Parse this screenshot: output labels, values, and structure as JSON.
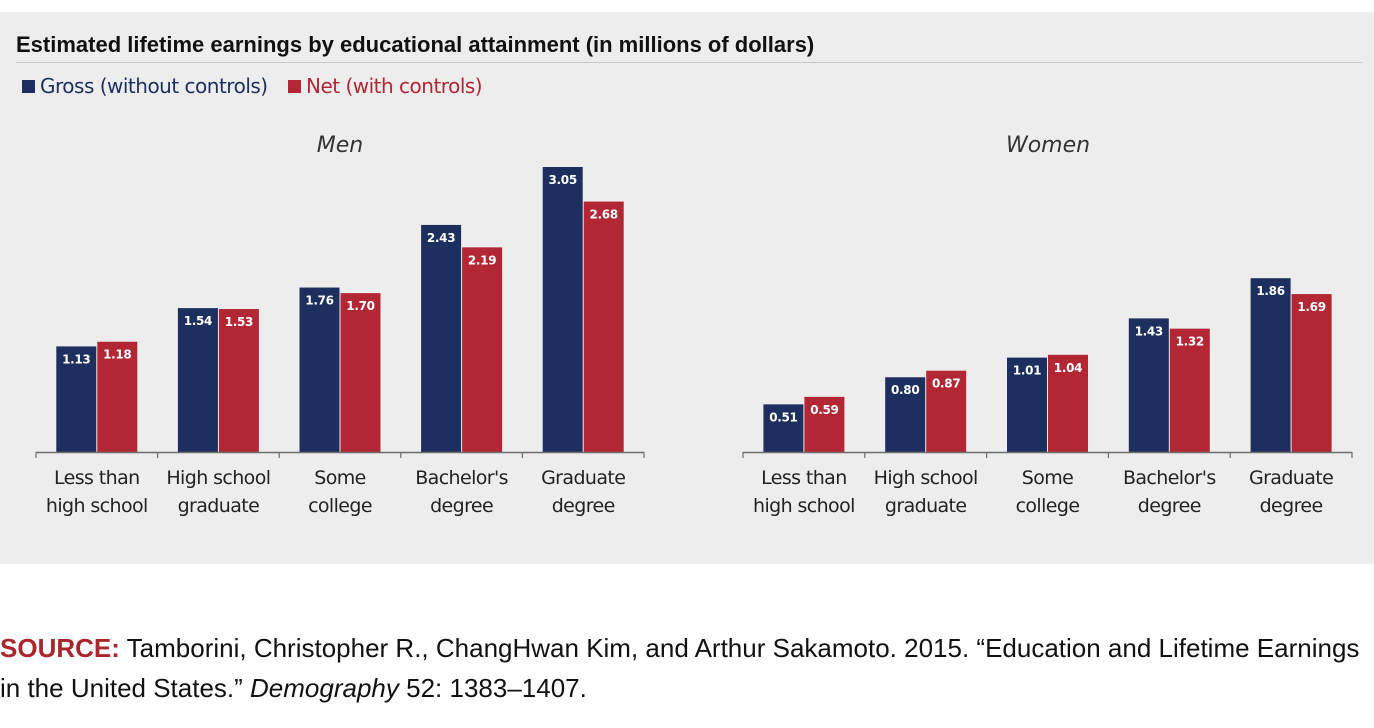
{
  "title": "Estimated lifetime earnings by educational attainment (in millions of dollars)",
  "legend": [
    {
      "label": "Gross (without controls)",
      "color": "#1c2f5e"
    },
    {
      "label": "Net (with controls)",
      "color": "#b32634"
    }
  ],
  "chart_data": [
    {
      "type": "bar",
      "title": "Men",
      "categories": [
        [
          "Less than",
          "high school"
        ],
        [
          "High school",
          "graduate"
        ],
        [
          "Some",
          "college"
        ],
        [
          "Bachelor's",
          "degree"
        ],
        [
          "Graduate",
          "degree"
        ]
      ],
      "series": [
        {
          "name": "Gross (without controls)",
          "color": "#1c2f5e",
          "values": [
            1.13,
            1.54,
            1.76,
            2.43,
            3.05
          ],
          "labels": [
            "1.13",
            "1.54",
            "1.76",
            "2.43",
            "3.05"
          ]
        },
        {
          "name": "Net (with controls)",
          "color": "#b32634",
          "values": [
            1.18,
            1.53,
            1.7,
            2.19,
            2.68
          ],
          "labels": [
            "1.18",
            "1.53",
            "1.70",
            "2.19",
            "2.68"
          ]
        }
      ],
      "ylim": [
        0,
        3.05
      ],
      "grid": false
    },
    {
      "type": "bar",
      "title": "Women",
      "categories": [
        [
          "Less than",
          "high school"
        ],
        [
          "High school",
          "graduate"
        ],
        [
          "Some",
          "college"
        ],
        [
          "Bachelor's",
          "degree"
        ],
        [
          "Graduate",
          "degree"
        ]
      ],
      "series": [
        {
          "name": "Gross (without controls)",
          "color": "#1c2f5e",
          "values": [
            0.51,
            0.8,
            1.01,
            1.43,
            1.86
          ],
          "labels": [
            "0.51",
            "0.80",
            "1.01",
            "1.43",
            "1.86"
          ]
        },
        {
          "name": "Net (with controls)",
          "color": "#b32634",
          "values": [
            0.59,
            0.87,
            1.04,
            1.32,
            1.69
          ],
          "labels": [
            "0.59",
            "0.87",
            "1.04",
            "1.32",
            "1.69"
          ]
        }
      ],
      "ylim": [
        0,
        3.05
      ],
      "grid": false
    }
  ],
  "source": {
    "label": "SOURCE:",
    "text_before": " Tamborini, Christopher R., ChangHwan Kim, and Arthur Sakamoto. 2015. “Education and Lifetime Earnings in the United States.” ",
    "journal": "Demography",
    "text_after": " 52: 1383–1407."
  }
}
